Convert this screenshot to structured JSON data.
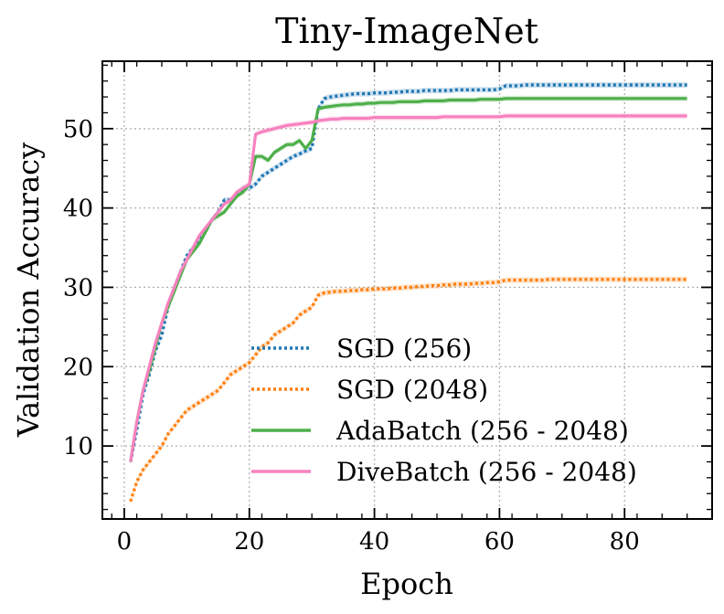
{
  "chart_data": {
    "type": "line",
    "title": "Tiny-ImageNet",
    "xlabel": "Epoch",
    "ylabel": "Validation Accuracy",
    "xlim": [
      -3.5,
      94
    ],
    "ylim": [
      0.8,
      58.5
    ],
    "xticks": [
      0,
      20,
      40,
      60,
      80
    ],
    "yticks": [
      10,
      20,
      30,
      40,
      50
    ],
    "grid": true,
    "legend_position": "lower-right",
    "x": [
      1,
      2,
      3,
      4,
      5,
      6,
      7,
      8,
      9,
      10,
      11,
      12,
      13,
      14,
      15,
      16,
      17,
      18,
      19,
      20,
      21,
      22,
      23,
      24,
      25,
      26,
      27,
      28,
      29,
      30,
      31,
      32,
      33,
      34,
      35,
      36,
      37,
      38,
      39,
      40,
      41,
      42,
      43,
      44,
      45,
      46,
      47,
      48,
      49,
      50,
      51,
      52,
      53,
      54,
      55,
      56,
      57,
      58,
      59,
      60,
      61,
      62,
      63,
      64,
      65,
      66,
      67,
      68,
      69,
      70,
      71,
      72,
      73,
      74,
      75,
      76,
      77,
      78,
      79,
      80,
      81,
      82,
      83,
      84,
      85,
      86,
      87,
      88,
      89,
      90
    ],
    "series": [
      {
        "name": "SGD (256)",
        "color": "#1f77b4",
        "style": "dotted",
        "values": [
          8.0,
          12.0,
          16.5,
          19.0,
          22.0,
          24.0,
          27.5,
          30.0,
          32.0,
          34.0,
          35.0,
          36.0,
          37.0,
          38.5,
          39.5,
          41.0,
          41.0,
          41.5,
          42.5,
          42.5,
          43.0,
          44.0,
          44.5,
          45.0,
          45.5,
          46.0,
          46.5,
          46.8,
          47.2,
          47.5,
          52.5,
          53.8,
          54.0,
          54.1,
          54.2,
          54.3,
          54.4,
          54.4,
          54.4,
          54.5,
          54.5,
          54.5,
          54.6,
          54.6,
          54.7,
          54.7,
          54.7,
          54.8,
          54.8,
          54.8,
          54.8,
          54.8,
          54.9,
          54.9,
          54.9,
          54.9,
          54.9,
          54.9,
          54.9,
          55.0,
          55.4,
          55.4,
          55.4,
          55.5,
          55.5,
          55.5,
          55.5,
          55.5,
          55.5,
          55.5,
          55.5,
          55.5,
          55.5,
          55.5,
          55.5,
          55.5,
          55.5,
          55.5,
          55.5,
          55.5,
          55.5,
          55.5,
          55.5,
          55.5,
          55.5,
          55.5,
          55.5,
          55.5,
          55.5,
          55.5
        ]
      },
      {
        "name": "SGD (2048)",
        "color": "#ff7f0e",
        "style": "dotted",
        "values": [
          3.0,
          5.5,
          7.0,
          8.0,
          9.0,
          10.0,
          11.5,
          12.5,
          13.5,
          14.5,
          15.0,
          15.5,
          16.0,
          16.5,
          17.0,
          18.0,
          19.0,
          19.5,
          20.0,
          20.5,
          21.5,
          22.5,
          23.0,
          24.0,
          24.5,
          25.0,
          25.5,
          26.5,
          27.0,
          27.5,
          29.0,
          29.3,
          29.4,
          29.5,
          29.5,
          29.6,
          29.6,
          29.7,
          29.7,
          29.8,
          29.8,
          29.8,
          29.9,
          29.9,
          30.0,
          30.0,
          30.1,
          30.1,
          30.2,
          30.2,
          30.3,
          30.3,
          30.4,
          30.4,
          30.4,
          30.5,
          30.5,
          30.6,
          30.6,
          30.7,
          30.9,
          30.9,
          30.9,
          30.9,
          30.9,
          30.9,
          30.9,
          31.0,
          31.0,
          31.0,
          31.0,
          31.0,
          31.0,
          31.0,
          31.0,
          31.0,
          31.0,
          31.0,
          31.0,
          31.0,
          31.0,
          31.0,
          31.0,
          31.0,
          31.0,
          31.0,
          31.0,
          31.0,
          31.0,
          31.0
        ]
      },
      {
        "name": "AdaBatch (256 - 2048)",
        "color": "#4daf4a",
        "style": "solid",
        "values": [
          8.0,
          13.0,
          17.0,
          19.5,
          22.5,
          25.5,
          27.5,
          29.5,
          31.5,
          33.5,
          34.5,
          35.5,
          37.0,
          38.5,
          39.0,
          39.5,
          40.5,
          41.5,
          42.0,
          43.0,
          46.5,
          46.5,
          46.0,
          47.0,
          47.5,
          48.0,
          48.0,
          48.5,
          47.5,
          48.5,
          52.5,
          52.7,
          52.8,
          52.9,
          53.0,
          53.0,
          53.1,
          53.1,
          53.2,
          53.2,
          53.3,
          53.3,
          53.3,
          53.4,
          53.4,
          53.4,
          53.4,
          53.5,
          53.5,
          53.5,
          53.5,
          53.6,
          53.6,
          53.6,
          53.6,
          53.6,
          53.7,
          53.7,
          53.7,
          53.7,
          53.8,
          53.8,
          53.8,
          53.8,
          53.8,
          53.8,
          53.8,
          53.8,
          53.8,
          53.8,
          53.8,
          53.8,
          53.8,
          53.8,
          53.8,
          53.8,
          53.8,
          53.8,
          53.8,
          53.8,
          53.8,
          53.8,
          53.8,
          53.8,
          53.8,
          53.8,
          53.8,
          53.8,
          53.8,
          53.8
        ]
      },
      {
        "name": "DiveBatch (256 - 2048)",
        "color": "#f781bf",
        "style": "solid",
        "values": [
          8.0,
          13.0,
          17.0,
          20.0,
          23.0,
          25.5,
          28.0,
          30.0,
          32.0,
          33.5,
          35.0,
          36.5,
          37.5,
          38.5,
          39.5,
          40.5,
          41.0,
          42.0,
          42.5,
          43.0,
          49.3,
          49.6,
          49.8,
          50.0,
          50.2,
          50.4,
          50.5,
          50.6,
          50.7,
          50.8,
          51.0,
          51.1,
          51.2,
          51.2,
          51.3,
          51.3,
          51.3,
          51.3,
          51.3,
          51.4,
          51.4,
          51.4,
          51.4,
          51.4,
          51.4,
          51.4,
          51.4,
          51.4,
          51.4,
          51.4,
          51.5,
          51.5,
          51.5,
          51.5,
          51.5,
          51.5,
          51.5,
          51.5,
          51.5,
          51.5,
          51.6,
          51.6,
          51.6,
          51.6,
          51.6,
          51.6,
          51.6,
          51.6,
          51.6,
          51.6,
          51.6,
          51.6,
          51.6,
          51.6,
          51.6,
          51.6,
          51.6,
          51.6,
          51.6,
          51.6,
          51.6,
          51.6,
          51.6,
          51.6,
          51.6,
          51.6,
          51.6,
          51.6,
          51.6,
          51.6
        ]
      }
    ]
  }
}
